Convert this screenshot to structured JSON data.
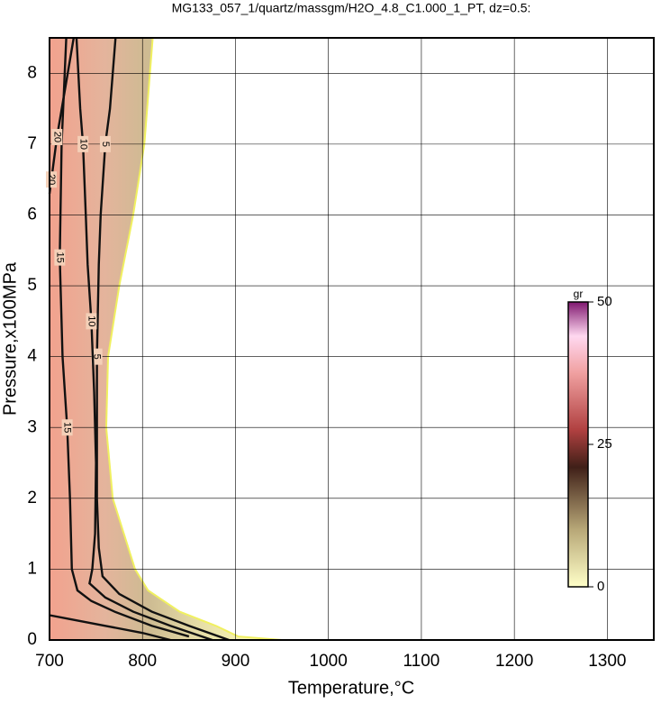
{
  "chart_data": {
    "type": "contour",
    "title": "MG133_057_1/quartz/massgm/H2O_4.8_C1.000_1_PT, dz=0.5:",
    "x_label": "Temperature,°C",
    "y_label": "Pressure,x100MPa",
    "xlim": [
      700,
      1350
    ],
    "ylim": [
      0,
      8.5
    ],
    "xticks": [
      700,
      800,
      900,
      1000,
      1100,
      1200,
      1300
    ],
    "yticks": [
      0,
      1,
      2,
      3,
      4,
      5,
      6,
      7,
      8
    ],
    "grid": true,
    "field_boundary": {
      "x": [
        700,
        811,
        802,
        790,
        775,
        763,
        761,
        768,
        780,
        792,
        806,
        840,
        879,
        903,
        950,
        700
      ],
      "y": [
        8.5,
        8.5,
        7,
        6,
        5,
        4,
        3,
        2,
        1.5,
        1,
        0.7,
        0.4,
        0.2,
        0.05,
        0,
        0
      ]
    },
    "contours": [
      {
        "level": 5,
        "x": [
          771,
          765,
          760,
          755,
          753,
          751,
          751,
          751,
          753,
          757,
          775,
          810,
          850,
          893
        ],
        "y": [
          8.5,
          7.5,
          7,
          6,
          5.3,
          4,
          3,
          2,
          1.3,
          0.9,
          0.65,
          0.4,
          0.2,
          0
        ]
      },
      {
        "level": 10,
        "x": [
          729,
          733,
          736,
          739,
          741,
          745,
          748,
          750,
          749,
          746,
          743,
          760,
          790,
          830,
          875
        ],
        "y": [
          8.5,
          7.5,
          7,
          6,
          5.3,
          4.5,
          3.5,
          2.5,
          1.5,
          1,
          0.8,
          0.6,
          0.4,
          0.2,
          0
        ]
      },
      {
        "level": 15,
        "x": [
          718,
          713,
          711,
          714,
          719,
          722,
          724,
          730,
          745,
          770,
          810,
          850
        ],
        "y": [
          8.5,
          7,
          5.4,
          4,
          3,
          2,
          1,
          0.7,
          0.55,
          0.4,
          0.2,
          0.05
        ]
      },
      {
        "level": 20,
        "x": [
          726,
          717,
          708,
          702,
          700,
          null,
          700,
          720,
          760,
          800,
          830
        ],
        "y": [
          8.5,
          7.8,
          7.1,
          6.5,
          6.3,
          null,
          0.35,
          0.3,
          0.2,
          0.1,
          0
        ]
      }
    ],
    "colorbar": {
      "label": "gr",
      "lim": [
        0,
        50
      ],
      "ticks": [
        0,
        25,
        50
      ]
    }
  }
}
